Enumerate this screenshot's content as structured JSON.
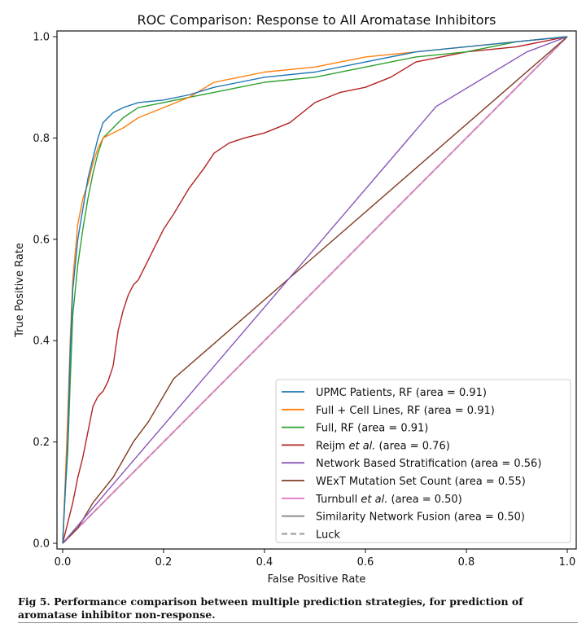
{
  "chart_data": {
    "type": "line",
    "title": "ROC Comparison: Response to All Aromatase Inhibitors",
    "xlabel": "False Positive Rate",
    "ylabel": "True Positive Rate",
    "xlim": [
      0.0,
      1.0
    ],
    "ylim": [
      0.0,
      1.0
    ],
    "xticks": [
      "0.0",
      "0.2",
      "0.4",
      "0.6",
      "0.8",
      "1.0"
    ],
    "yticks": [
      "0.0",
      "0.2",
      "0.4",
      "0.6",
      "0.8",
      "1.0"
    ],
    "grid": false,
    "legend_position": "lower-right",
    "series": [
      {
        "name": "UPMC Patients, RF (area = 0.91)",
        "color": "#1f77b4",
        "x": [
          0,
          0.005,
          0.01,
          0.015,
          0.02,
          0.03,
          0.04,
          0.05,
          0.06,
          0.07,
          0.08,
          0.1,
          0.12,
          0.15,
          0.2,
          0.25,
          0.3,
          0.35,
          0.4,
          0.5,
          0.6,
          0.7,
          0.8,
          0.9,
          1.0
        ],
        "y": [
          0,
          0.1,
          0.2,
          0.38,
          0.5,
          0.6,
          0.66,
          0.72,
          0.76,
          0.8,
          0.83,
          0.85,
          0.86,
          0.87,
          0.875,
          0.885,
          0.9,
          0.91,
          0.92,
          0.93,
          0.95,
          0.97,
          0.98,
          0.99,
          1.0
        ]
      },
      {
        "name": "Full + Cell Lines, RF (area = 0.91)",
        "color": "#ff7f0e",
        "x": [
          0,
          0.005,
          0.01,
          0.015,
          0.02,
          0.03,
          0.04,
          0.05,
          0.06,
          0.07,
          0.08,
          0.1,
          0.12,
          0.15,
          0.2,
          0.25,
          0.3,
          0.35,
          0.4,
          0.5,
          0.6,
          0.7,
          0.8,
          0.9,
          1.0
        ],
        "y": [
          0,
          0.12,
          0.25,
          0.4,
          0.52,
          0.63,
          0.68,
          0.71,
          0.75,
          0.78,
          0.8,
          0.81,
          0.82,
          0.84,
          0.86,
          0.88,
          0.91,
          0.92,
          0.93,
          0.94,
          0.96,
          0.97,
          0.98,
          0.99,
          1.0
        ]
      },
      {
        "name": "Full, RF (area = 0.91)",
        "color": "#2ca02c",
        "x": [
          0,
          0.005,
          0.01,
          0.015,
          0.02,
          0.03,
          0.04,
          0.05,
          0.06,
          0.07,
          0.08,
          0.1,
          0.12,
          0.15,
          0.2,
          0.25,
          0.3,
          0.35,
          0.4,
          0.5,
          0.6,
          0.7,
          0.8,
          0.9,
          1.0
        ],
        "y": [
          0,
          0.1,
          0.18,
          0.32,
          0.45,
          0.55,
          0.62,
          0.68,
          0.73,
          0.77,
          0.8,
          0.82,
          0.84,
          0.86,
          0.87,
          0.88,
          0.89,
          0.9,
          0.91,
          0.92,
          0.94,
          0.96,
          0.97,
          0.99,
          1.0
        ]
      },
      {
        "name": "Reijm et al. (area = 0.76)",
        "color": "#b22222",
        "x": [
          0,
          0.01,
          0.02,
          0.03,
          0.04,
          0.05,
          0.06,
          0.07,
          0.08,
          0.09,
          0.1,
          0.11,
          0.12,
          0.13,
          0.14,
          0.15,
          0.17,
          0.19,
          0.2,
          0.22,
          0.25,
          0.28,
          0.3,
          0.33,
          0.36,
          0.4,
          0.45,
          0.5,
          0.55,
          0.6,
          0.65,
          0.7,
          0.75,
          0.8,
          0.85,
          0.9,
          0.95,
          1.0
        ],
        "y": [
          0,
          0.04,
          0.08,
          0.13,
          0.17,
          0.22,
          0.27,
          0.29,
          0.3,
          0.32,
          0.35,
          0.42,
          0.46,
          0.49,
          0.51,
          0.52,
          0.56,
          0.6,
          0.62,
          0.65,
          0.7,
          0.74,
          0.77,
          0.79,
          0.8,
          0.81,
          0.83,
          0.87,
          0.89,
          0.9,
          0.92,
          0.95,
          0.96,
          0.97,
          0.975,
          0.98,
          0.99,
          1.0
        ]
      },
      {
        "name": "Network Based Stratification (area = 0.56)",
        "color": "#8a56b8",
        "x": [
          0,
          0.74,
          0.92,
          1.0
        ],
        "y": [
          0,
          0.862,
          0.97,
          1.0
        ]
      },
      {
        "name": "WExT Mutation Set Count (area = 0.55)",
        "color": "#7f3b20",
        "x": [
          0,
          0.03,
          0.06,
          0.1,
          0.14,
          0.17,
          0.22,
          1.0
        ],
        "y": [
          0,
          0.03,
          0.08,
          0.13,
          0.2,
          0.24,
          0.325,
          1.0
        ]
      },
      {
        "name": "Turnbull et al. (area = 0.50)",
        "color": "#e377c2",
        "x": [
          0,
          1.0
        ],
        "y": [
          0,
          1.0
        ]
      },
      {
        "name": "Similarity Network Fusion (area = 0.50)",
        "color": "#7f7f7f",
        "x": [
          0,
          1.0
        ],
        "y": [
          0,
          1.0
        ]
      },
      {
        "name": "Luck",
        "color": "#a0a0a0",
        "dashed": true,
        "x": [
          0,
          1.0
        ],
        "y": [
          0,
          1.0
        ]
      }
    ]
  },
  "legend_labels": [
    {
      "pre": "UPMC Patients, RF (area = 0.91)",
      "em": "",
      "post": ""
    },
    {
      "pre": "Full + Cell Lines, RF (area = 0.91)",
      "em": "",
      "post": ""
    },
    {
      "pre": "Full, RF (area = 0.91)",
      "em": "",
      "post": ""
    },
    {
      "pre": "Reijm ",
      "em": "et al.",
      "post": " (area = 0.76)"
    },
    {
      "pre": "Network Based Stratification (area = 0.56)",
      "em": "",
      "post": ""
    },
    {
      "pre": "WExT Mutation Set Count (area = 0.55)",
      "em": "",
      "post": ""
    },
    {
      "pre": "Turnbull ",
      "em": "et al.",
      "post": " (area = 0.50)"
    },
    {
      "pre": "Similarity Network Fusion (area = 0.50)",
      "em": "",
      "post": ""
    },
    {
      "pre": "Luck",
      "em": "",
      "post": ""
    }
  ],
  "caption": {
    "label": "Fig 5. Performance comparison between multiple prediction strategies, for prediction of aromatase inhibitor non-response."
  }
}
